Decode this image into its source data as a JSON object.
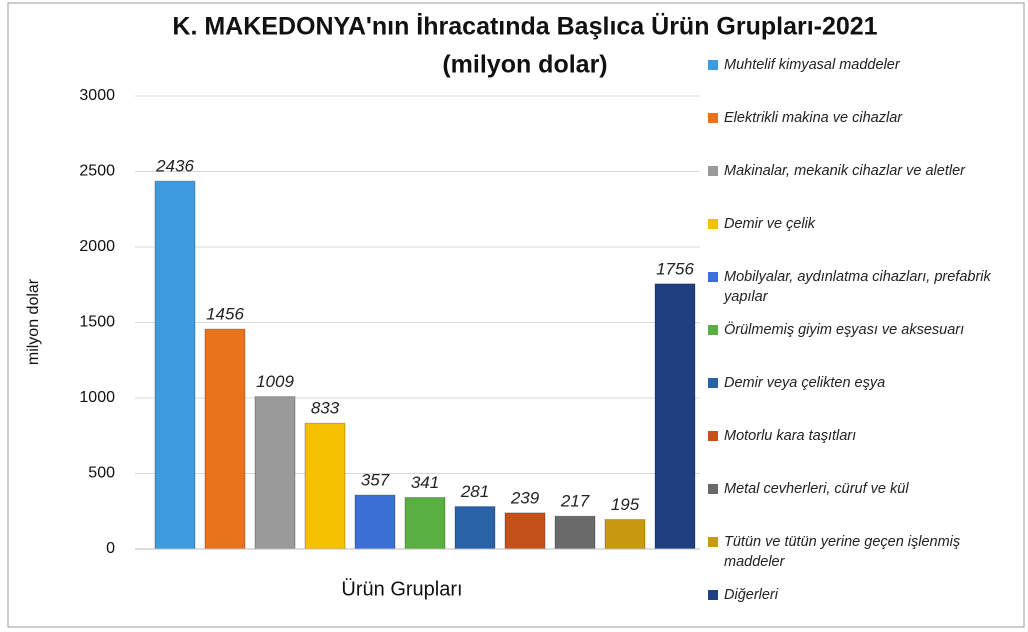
{
  "chart_data": {
    "type": "bar",
    "title": "K. MAKEDONYA'nın İhracatında Başlıca Ürün Grupları-2021",
    "subtitle": "(milyon dolar)",
    "y_label": "milyon dolar",
    "x_label": "Ürün Grupları",
    "categories": [
      "Muhtelif kimyasal maddeler",
      "Elektrikli makina ve cihazlar",
      "Makinalar, mekanik cihazlar ve aletler",
      "Demir ve çelik",
      "Mobilyalar, aydınlatma cihazları, prefabrik yapılar",
      "Örülmemiş giyim eşyası ve aksesuarı",
      "Demir veya çelikten eşya",
      "Motorlu kara taşıtları",
      "Metal cevherleri, cüruf ve kül",
      "Tütün ve tütün yerine geçen işlenmiş maddeler",
      "Diğerleri"
    ],
    "values": [
      2436,
      1456,
      1009,
      833,
      357,
      341,
      281,
      239,
      217,
      195,
      1756
    ],
    "colors": [
      "#3d9be0",
      "#e8731c",
      "#9a9a9a",
      "#f5c000",
      "#3a6fd6",
      "#58b040",
      "#2a62a8",
      "#c4501a",
      "#6a6a6a",
      "#c89a10",
      "#1f3f80"
    ],
    "ylim": [
      0,
      3000
    ],
    "yticks": [
      0,
      500,
      1000,
      1500,
      2000,
      2500,
      3000
    ],
    "grid": true,
    "legend": "right"
  }
}
